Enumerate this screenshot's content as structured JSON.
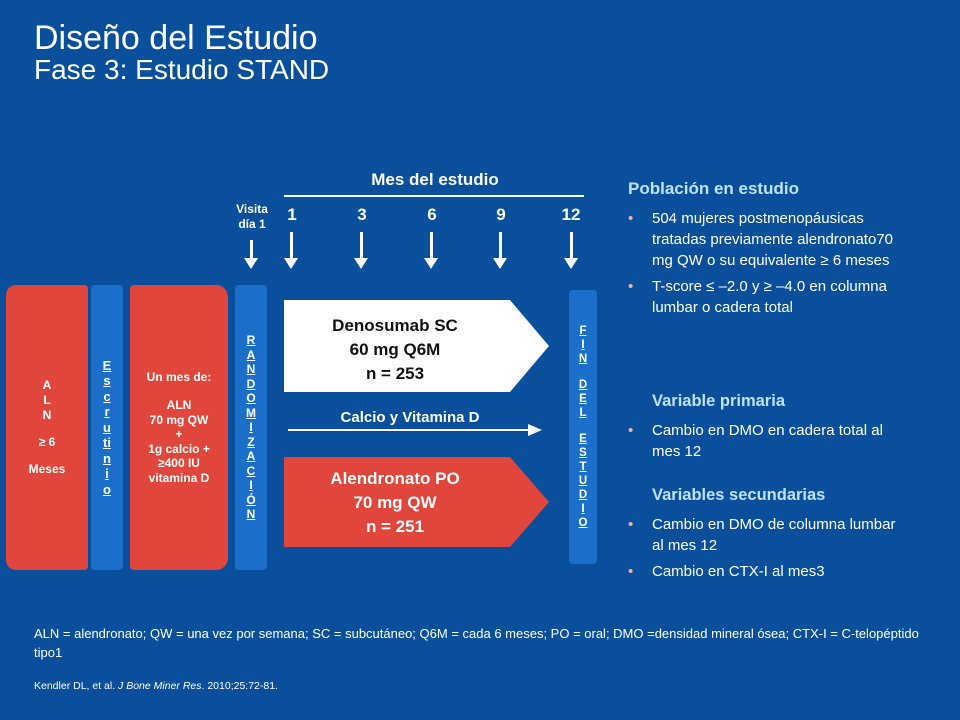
{
  "title": "Diseño del Estudio",
  "subtitle": "Fase 3: Estudio STAND",
  "aln_box": {
    "l1": "A",
    "l2": "L",
    "l3": "N",
    "l4": "≥ 6",
    "l5": "Meses"
  },
  "screening_letters": [
    "E",
    "s",
    "c",
    "r",
    "u",
    "ti",
    "n",
    "i",
    "o"
  ],
  "runin": {
    "l1": "Un mes de:",
    "l2": "ALN",
    "l3": "70 mg QW",
    "l4": "+",
    "l5": "1g calcio +",
    "l6": "≥400 IU",
    "l7": "vitamina D"
  },
  "randomization_letters": [
    "R",
    "A",
    "N",
    "D",
    "O",
    "M",
    "I",
    "Z",
    "A",
    "C",
    "I",
    "Ó",
    "N"
  ],
  "end_letters": [
    "F",
    "I",
    "N",
    "",
    "D",
    "E",
    "L",
    "",
    "E",
    "S",
    "T",
    "U",
    "D",
    "I",
    "O"
  ],
  "timeline": {
    "heading": "Mes del estudio",
    "visit_l1": "Visita",
    "visit_l2": "día 1",
    "months": [
      "1",
      "3",
      "6",
      "9",
      "12"
    ]
  },
  "denosumab": {
    "l1": "Denosumab SC",
    "l2": "60 mg Q6M",
    "l3": "n = 253"
  },
  "alendronate": {
    "l1": "Alendronato PO",
    "l2": "70 mg QW",
    "l3": "n = 251"
  },
  "calcium_label": "Calcio y Vitamina D",
  "right_panel": {
    "population_heading": "Población en estudio",
    "population_bullets": [
      "504 mujeres postmenopáusicas tratadas previamente alendronato70 mg QW o su equivalente ≥ 6 meses",
      "T-score ≤ –2.0 y ≥ –4.0 en columna lumbar o cadera total"
    ],
    "primary_heading": "Variable primaria",
    "primary_bullets": [
      "Cambio en DMO en cadera total al mes 12"
    ],
    "secondary_heading": "Variables secundarias",
    "secondary_bullets": [
      "Cambio en DMO de columna lumbar al mes 12",
      "Cambio en CTX-I al mes3"
    ]
  },
  "footnote": "ALN = alendronato; QW = una vez por semana; SC = subcutáneo; Q6M = cada 6 meses; PO = oral; DMO =densidad mineral ósea; CTX-I = C-telopéptido tipo1",
  "reference": {
    "authors": "Kendler DL, et al. ",
    "journal": "J Bone Miner Res",
    "rest": ". 2010;25:72-81."
  },
  "colors": {
    "background": "#0a4f9b",
    "red": "#e0463b",
    "blue_bar": "#1b6fc8",
    "heading": "#bfe0ff"
  }
}
